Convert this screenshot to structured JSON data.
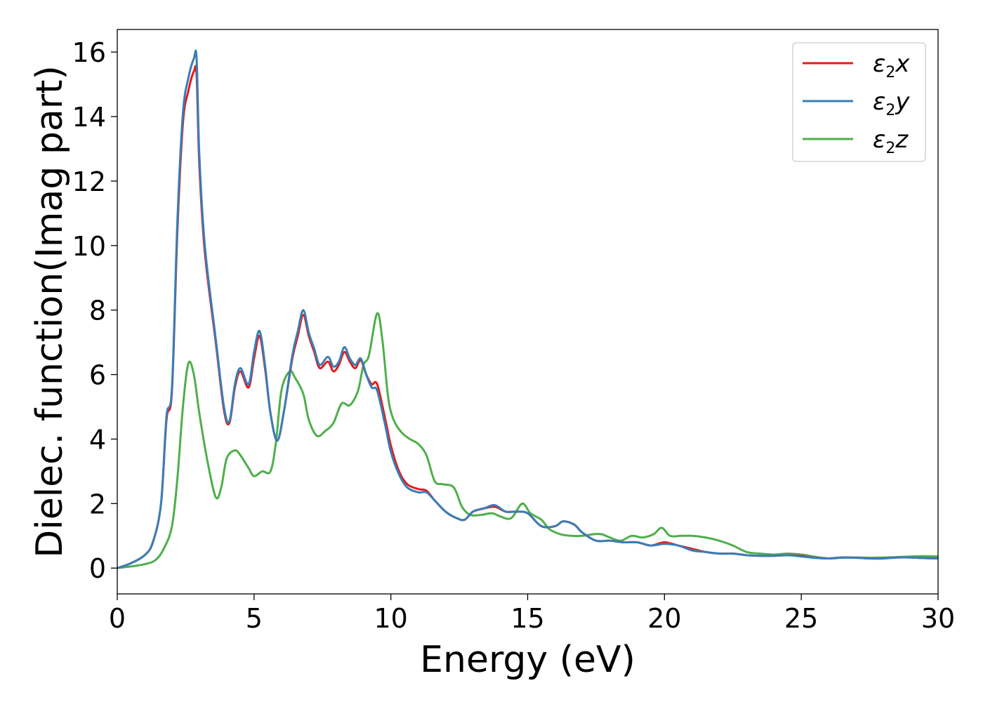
{
  "chart_data": {
    "type": "line",
    "title": "",
    "xlabel": "Energy (eV)",
    "ylabel": "Dielec. function(Imag part)",
    "xlim": [
      0,
      30
    ],
    "ylim": [
      -0.8,
      16.7
    ],
    "xticks": [
      0,
      5,
      10,
      15,
      20,
      25,
      30
    ],
    "yticks": [
      0,
      2,
      4,
      6,
      8,
      10,
      12,
      14,
      16
    ],
    "grid": false,
    "legend_position": "top-right",
    "series": [
      {
        "name": "ε2x",
        "legend": {
          "base": "ε",
          "sub": "2",
          "suffix": "x"
        },
        "color": "#e41a1c",
        "x": [
          0,
          0.5,
          1.0,
          1.3,
          1.6,
          1.8,
          2.0,
          2.2,
          2.4,
          2.6,
          2.8,
          2.9,
          3.0,
          3.2,
          3.6,
          3.9,
          4.1,
          4.3,
          4.5,
          4.8,
          5.0,
          5.2,
          5.4,
          5.6,
          5.85,
          6.1,
          6.4,
          6.6,
          6.8,
          7.0,
          7.2,
          7.4,
          7.7,
          7.9,
          8.1,
          8.3,
          8.5,
          8.7,
          8.9,
          9.1,
          9.3,
          9.5,
          9.8,
          10.0,
          10.3,
          10.6,
          11.0,
          11.3,
          11.6,
          12.0,
          12.4,
          12.7,
          13.0,
          13.4,
          13.8,
          14.2,
          14.6,
          15.0,
          15.5,
          16.0,
          16.3,
          16.7,
          17.0,
          17.5,
          18.0,
          18.5,
          19.0,
          19.5,
          20.0,
          20.5,
          21.0,
          21.5,
          22.0,
          22.5,
          23.0,
          23.5,
          24.0,
          24.5,
          25.0,
          25.5,
          26.0,
          26.5,
          27.0,
          27.5,
          28.0,
          28.5,
          29.0,
          29.5,
          30.0
        ],
        "y": [
          0.0,
          0.15,
          0.4,
          0.8,
          2.0,
          4.6,
          5.5,
          10.5,
          13.8,
          14.8,
          15.4,
          15.3,
          12.5,
          9.8,
          7.0,
          4.9,
          4.5,
          5.6,
          6.1,
          5.6,
          6.5,
          7.2,
          6.2,
          4.8,
          3.95,
          4.9,
          6.5,
          7.2,
          7.85,
          7.2,
          6.7,
          6.2,
          6.4,
          6.1,
          6.3,
          6.7,
          6.4,
          6.2,
          6.45,
          6.0,
          5.7,
          5.7,
          4.6,
          3.8,
          3.0,
          2.6,
          2.45,
          2.4,
          2.1,
          1.75,
          1.55,
          1.5,
          1.75,
          1.85,
          1.9,
          1.75,
          1.75,
          1.7,
          1.3,
          1.3,
          1.45,
          1.35,
          1.1,
          0.85,
          0.85,
          0.8,
          0.8,
          0.7,
          0.8,
          0.7,
          0.6,
          0.5,
          0.45,
          0.45,
          0.4,
          0.38,
          0.38,
          0.4,
          0.38,
          0.32,
          0.3,
          0.33,
          0.32,
          0.3,
          0.3,
          0.33,
          0.33,
          0.31,
          0.3
        ]
      },
      {
        "name": "ε2y",
        "legend": {
          "base": "ε",
          "sub": "2",
          "suffix": "y"
        },
        "color": "#377eb8",
        "x": [
          0,
          0.5,
          1.0,
          1.3,
          1.6,
          1.8,
          2.0,
          2.2,
          2.4,
          2.6,
          2.8,
          2.9,
          3.0,
          3.2,
          3.6,
          3.9,
          4.1,
          4.3,
          4.5,
          4.8,
          5.0,
          5.2,
          5.4,
          5.6,
          5.85,
          6.1,
          6.4,
          6.6,
          6.8,
          7.0,
          7.2,
          7.4,
          7.7,
          7.9,
          8.1,
          8.3,
          8.5,
          8.7,
          8.9,
          9.1,
          9.3,
          9.5,
          9.8,
          10.0,
          10.3,
          10.6,
          11.0,
          11.3,
          11.6,
          12.0,
          12.4,
          12.7,
          13.0,
          13.4,
          13.8,
          14.2,
          14.6,
          15.0,
          15.5,
          16.0,
          16.3,
          16.7,
          17.0,
          17.5,
          18.0,
          18.5,
          19.0,
          19.5,
          20.0,
          20.5,
          21.0,
          21.5,
          22.0,
          22.5,
          23.0,
          23.5,
          24.0,
          24.5,
          25.0,
          25.5,
          26.0,
          26.5,
          27.0,
          27.5,
          28.0,
          28.5,
          29.0,
          29.5,
          30.0
        ],
        "y": [
          0.0,
          0.15,
          0.4,
          0.8,
          2.0,
          4.7,
          5.6,
          10.8,
          14.1,
          15.2,
          15.8,
          15.8,
          12.8,
          10.0,
          7.1,
          5.0,
          4.55,
          5.7,
          6.2,
          5.7,
          6.7,
          7.35,
          6.3,
          4.8,
          3.95,
          4.9,
          6.6,
          7.35,
          8.0,
          7.3,
          6.8,
          6.3,
          6.55,
          6.25,
          6.4,
          6.85,
          6.5,
          6.3,
          6.5,
          6.0,
          5.6,
          5.5,
          4.4,
          3.6,
          2.9,
          2.5,
          2.35,
          2.35,
          2.1,
          1.75,
          1.55,
          1.5,
          1.75,
          1.85,
          1.95,
          1.75,
          1.75,
          1.7,
          1.3,
          1.3,
          1.45,
          1.35,
          1.1,
          0.85,
          0.85,
          0.8,
          0.8,
          0.7,
          0.75,
          0.7,
          0.55,
          0.5,
          0.45,
          0.45,
          0.4,
          0.38,
          0.38,
          0.4,
          0.36,
          0.32,
          0.3,
          0.33,
          0.32,
          0.3,
          0.3,
          0.33,
          0.33,
          0.31,
          0.3
        ]
      },
      {
        "name": "ε2z",
        "legend": {
          "base": "ε",
          "sub": "2",
          "suffix": "z"
        },
        "color": "#4daf4a",
        "x": [
          0,
          0.5,
          1.0,
          1.4,
          1.7,
          2.0,
          2.2,
          2.4,
          2.6,
          2.8,
          3.0,
          3.3,
          3.6,
          3.8,
          4.0,
          4.3,
          4.5,
          4.8,
          5.0,
          5.3,
          5.6,
          5.8,
          6.0,
          6.3,
          6.5,
          6.8,
          7.0,
          7.3,
          7.6,
          7.9,
          8.2,
          8.5,
          8.8,
          9.0,
          9.2,
          9.5,
          9.7,
          9.9,
          10.1,
          10.4,
          10.7,
          11.0,
          11.3,
          11.6,
          11.9,
          12.3,
          12.6,
          12.9,
          13.3,
          13.7,
          14.0,
          14.4,
          14.8,
          15.1,
          15.5,
          15.8,
          16.2,
          16.6,
          17.0,
          17.4,
          17.7,
          18.0,
          18.4,
          18.8,
          19.2,
          19.6,
          19.9,
          20.2,
          20.6,
          21.0,
          21.5,
          22.0,
          22.5,
          23.0,
          23.5,
          24.0,
          24.5,
          25.0,
          25.5,
          26.0,
          26.5,
          27.0,
          27.5,
          28.0,
          28.5,
          29.0,
          29.5,
          30.0
        ],
        "y": [
          0.0,
          0.05,
          0.12,
          0.25,
          0.6,
          1.3,
          2.8,
          5.0,
          6.35,
          6.0,
          4.8,
          3.3,
          2.2,
          2.5,
          3.4,
          3.65,
          3.5,
          3.1,
          2.85,
          3.0,
          3.0,
          3.9,
          5.5,
          6.1,
          5.9,
          5.4,
          4.6,
          4.1,
          4.25,
          4.5,
          5.1,
          5.05,
          5.5,
          6.3,
          6.6,
          7.9,
          7.0,
          5.3,
          4.6,
          4.2,
          4.0,
          3.85,
          3.5,
          2.7,
          2.6,
          2.5,
          1.9,
          1.65,
          1.65,
          1.7,
          1.6,
          1.55,
          2.0,
          1.7,
          1.5,
          1.2,
          1.05,
          1.0,
          1.0,
          1.05,
          1.05,
          0.95,
          0.85,
          1.0,
          0.95,
          1.05,
          1.25,
          1.0,
          1.0,
          1.0,
          0.95,
          0.85,
          0.7,
          0.5,
          0.45,
          0.42,
          0.45,
          0.42,
          0.35,
          0.3,
          0.32,
          0.33,
          0.32,
          0.33,
          0.34,
          0.36,
          0.37,
          0.36
        ]
      }
    ]
  }
}
